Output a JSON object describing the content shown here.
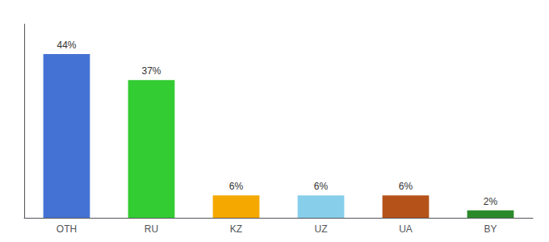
{
  "chart_data": {
    "type": "bar",
    "categories": [
      "OTH",
      "RU",
      "KZ",
      "UZ",
      "UA",
      "BY"
    ],
    "values": [
      44,
      37,
      6,
      6,
      6,
      2
    ],
    "value_labels": [
      "44%",
      "37%",
      "6%",
      "6%",
      "6%",
      "2%"
    ],
    "colors": [
      "#4472d4",
      "#33cc33",
      "#f5a800",
      "#87ceeb",
      "#b5521a",
      "#2a8a2a"
    ],
    "data_labels": true,
    "ylim": [
      0,
      52
    ],
    "grid": false,
    "tick_labels": "x"
  }
}
